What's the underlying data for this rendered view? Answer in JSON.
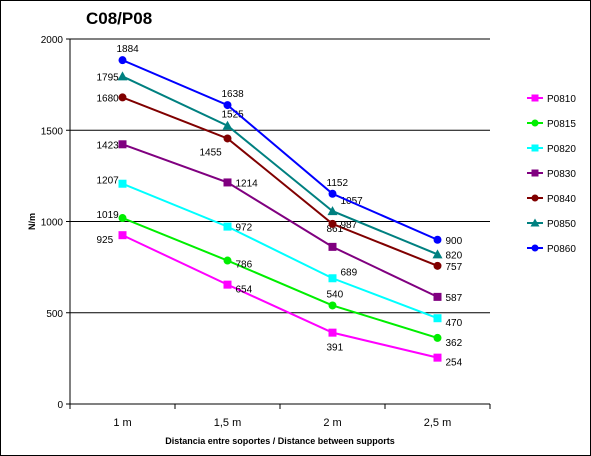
{
  "chart_data": {
    "type": "line",
    "title": "C08/P08",
    "xlabel": "Distancia entre soportes / Distance between supports",
    "ylabel": "N/m",
    "categories": [
      "1 m",
      "1,5 m",
      "2 m",
      "2,5 m"
    ],
    "ylim": [
      0,
      2000
    ],
    "yticks": [
      0,
      500,
      1000,
      1500,
      2000
    ],
    "grid": "horizontal",
    "legend_position": "right",
    "series": [
      {
        "name": "P0810",
        "color": "#ff00ff",
        "marker": "square",
        "values": [
          925,
          654,
          391,
          254
        ]
      },
      {
        "name": "P0815",
        "color": "#00ee00",
        "marker": "circle",
        "values": [
          1019,
          786,
          540,
          362
        ]
      },
      {
        "name": "P0820",
        "color": "#00ffff",
        "marker": "square",
        "values": [
          1207,
          972,
          689,
          470
        ]
      },
      {
        "name": "P0830",
        "color": "#800080",
        "marker": "square",
        "values": [
          1423,
          1214,
          861,
          587
        ]
      },
      {
        "name": "P0840",
        "color": "#800000",
        "marker": "circle",
        "values": [
          1680,
          1455,
          987,
          757
        ]
      },
      {
        "name": "P0850",
        "color": "#008080",
        "marker": "triangle",
        "values": [
          1795,
          1525,
          1057,
          820
        ]
      },
      {
        "name": "P0860",
        "color": "#0000ff",
        "marker": "circle",
        "values": [
          1884,
          1638,
          1152,
          900
        ]
      }
    ]
  }
}
